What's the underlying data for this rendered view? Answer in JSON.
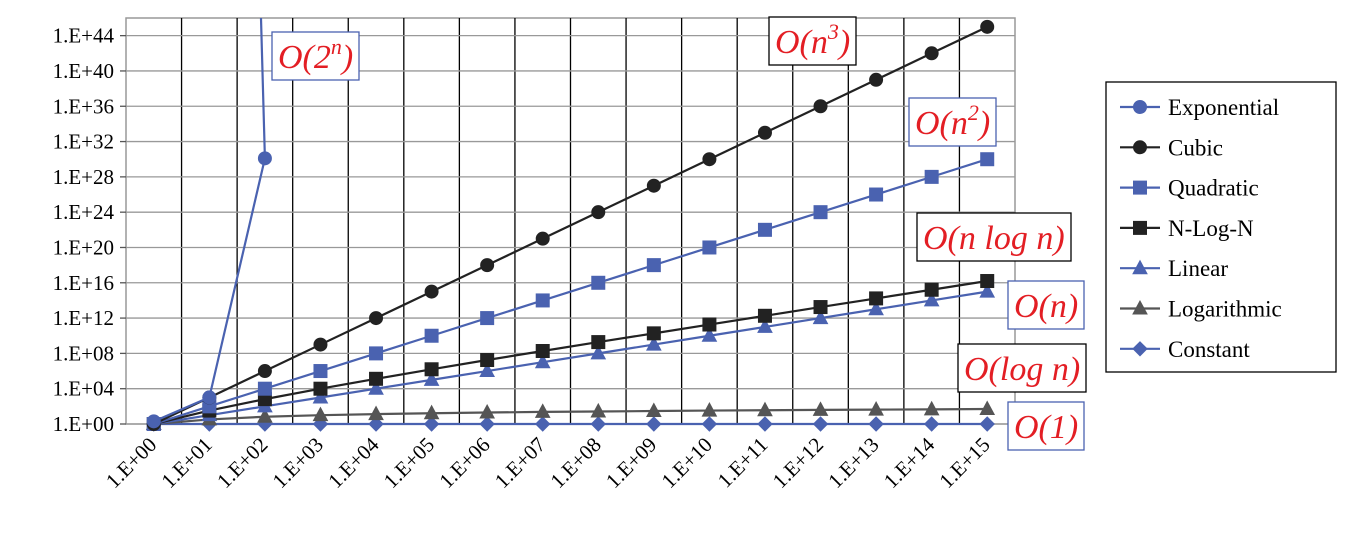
{
  "chart_data": {
    "type": "line",
    "xlabel": "",
    "ylabel": "",
    "x_log_scale": true,
    "y_log_scale": true,
    "grid": true,
    "legend_position": "right",
    "x": [
      1,
      10,
      100,
      1000,
      10000,
      100000,
      1000000,
      10000000,
      100000000,
      1000000000,
      10000000000,
      100000000000,
      1000000000000,
      10000000000000,
      100000000000000,
      1000000000000000
    ],
    "x_tick_labels": [
      "1.E+00",
      "1.E+01",
      "1.E+02",
      "1.E+03",
      "1.E+04",
      "1.E+05",
      "1.E+06",
      "1.E+07",
      "1.E+08",
      "1.E+09",
      "1.E+10",
      "1.E+11",
      "1.E+12",
      "1.E+13",
      "1.E+14",
      "1.E+15"
    ],
    "y_tick_labels": [
      "1.E+00",
      "1.E+04",
      "1.E+08",
      "1.E+12",
      "1.E+16",
      "1.E+20",
      "1.E+24",
      "1.E+28",
      "1.E+32",
      "1.E+36",
      "1.E+40",
      "1.E+44"
    ],
    "y_tick_exponents": [
      0,
      4,
      8,
      12,
      16,
      20,
      24,
      28,
      32,
      36,
      40,
      44
    ],
    "ylim_exponent": [
      0,
      46
    ],
    "series": [
      {
        "name": "Exponential",
        "color": "#4a62b0",
        "marker": "circle",
        "y_exponents": [
          0.301,
          3.01,
          30.1
        ]
      },
      {
        "name": "Cubic",
        "color": "#222222",
        "marker": "circle",
        "y_exponents": [
          0,
          3,
          6,
          9,
          12,
          15,
          18,
          21,
          24,
          27,
          30,
          33,
          36,
          39,
          42,
          45
        ]
      },
      {
        "name": "Quadratic",
        "color": "#4a62b0",
        "marker": "square",
        "y_exponents": [
          0,
          2,
          4,
          6,
          8,
          10,
          12,
          14,
          16,
          18,
          20,
          22,
          24,
          26,
          28,
          30
        ]
      },
      {
        "name": "N-Log-N",
        "color": "#222222",
        "marker": "square",
        "y_exponents": [
          0,
          1.52,
          2.82,
          3.999,
          5.121,
          6.2,
          7.25,
          8.27,
          9.28,
          10.27,
          11.27,
          12.26,
          13.25,
          14.23,
          15.21,
          16.2
        ]
      },
      {
        "name": "Linear",
        "color": "#4a62b0",
        "marker": "triangle",
        "y_exponents": [
          0,
          1,
          2,
          3,
          4,
          5,
          6,
          7,
          8,
          9,
          10,
          11,
          12,
          13,
          14,
          15
        ]
      },
      {
        "name": "Logarithmic",
        "color": "#555555",
        "marker": "triangle",
        "y_exponents": [
          0,
          0.52,
          0.82,
          1.0,
          1.12,
          1.22,
          1.3,
          1.37,
          1.42,
          1.47,
          1.52,
          1.56,
          1.6,
          1.63,
          1.66,
          1.7
        ]
      },
      {
        "name": "Constant",
        "color": "#4a62b0",
        "marker": "diamond",
        "y_exponents": [
          0,
          0,
          0,
          0,
          0,
          0,
          0,
          0,
          0,
          0,
          0,
          0,
          0,
          0,
          0,
          0
        ]
      }
    ],
    "annotations": [
      {
        "series": "Exponential",
        "base": "O(2",
        "sup": "n",
        "tail": ")"
      },
      {
        "series": "Cubic",
        "base": "O(n",
        "sup": "3",
        "tail": ")"
      },
      {
        "series": "Quadratic",
        "base": "O(n",
        "sup": "2",
        "tail": ")"
      },
      {
        "series": "N-Log-N",
        "base": "O(n log n)",
        "sup": "",
        "tail": ""
      },
      {
        "series": "Linear",
        "base": "O(n)",
        "sup": "",
        "tail": ""
      },
      {
        "series": "Logarithmic",
        "base": "O(log n)",
        "sup": "",
        "tail": ""
      },
      {
        "series": "Constant",
        "base": "O(1)",
        "sup": "",
        "tail": ""
      }
    ]
  }
}
